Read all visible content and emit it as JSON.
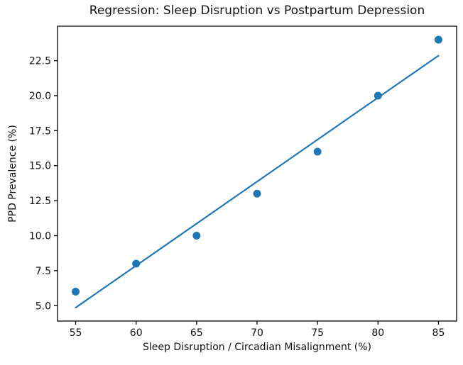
{
  "chart_data": {
    "type": "scatter",
    "title": "Regression: Sleep Disruption vs Postpartum Depression",
    "xlabel": "Sleep Disruption / Circadian Misalignment (%)",
    "ylabel": "PPD Prevalence (%)",
    "points": {
      "x": [
        55,
        60,
        65,
        70,
        75,
        80,
        85
      ],
      "y": [
        6,
        8,
        10,
        13,
        16,
        20,
        24
      ]
    },
    "regression_line": {
      "x1": 55,
      "y1": 4.86,
      "x2": 85,
      "y2": 22.86
    },
    "xlim": [
      53.5,
      86.5
    ],
    "ylim": [
      3.9,
      24.96
    ],
    "xtick_values": [
      55,
      60,
      65,
      70,
      75,
      80,
      85
    ],
    "xtick_labels": [
      "55",
      "60",
      "65",
      "70",
      "75",
      "80",
      "85"
    ],
    "ytick_values": [
      5.0,
      7.5,
      10.0,
      12.5,
      15.0,
      17.5,
      20.0,
      22.5
    ],
    "ytick_labels": [
      "5.0",
      "7.5",
      "10.0",
      "12.5",
      "15.0",
      "17.5",
      "20.0",
      "22.5"
    ],
    "grid": false,
    "legend": "none",
    "colors": {
      "marker": "#1f77b4",
      "line": "#1f77b4",
      "axis": "#000000",
      "text": "#111111",
      "background": "#ffffff"
    }
  }
}
